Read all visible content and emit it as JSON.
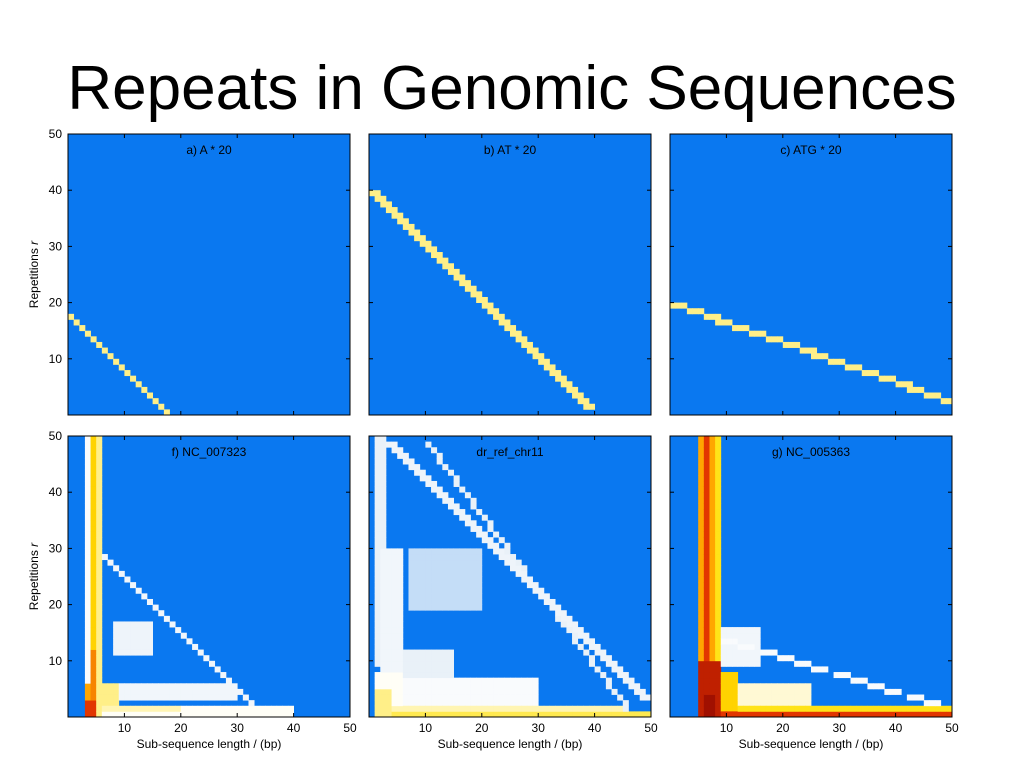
{
  "slide": {
    "title": "Repeats in Genomic Sequences"
  },
  "colors": {
    "background": "#0A78F0",
    "light_streak": "#E6F0FA",
    "colormap": [
      "#0A78F0",
      "#E8F0F8",
      "#FFFFFF",
      "#FFF2A0",
      "#FFE000",
      "#FFA000",
      "#E03000",
      "#A01000"
    ]
  },
  "axes_text": {
    "ylabel": "Repetitions",
    "ylabel_var": "r",
    "xlabel": "Sub-sequence length / (bp)",
    "yticks": [
      "10",
      "20",
      "30",
      "40",
      "50"
    ],
    "xticks": [
      "10",
      "20",
      "30",
      "40",
      "50"
    ]
  },
  "chart_data": [
    {
      "type": "heatmap",
      "title": "a) A * 20",
      "xlabel": "",
      "ylabel": "Repetitions r",
      "xlim": [
        0,
        50
      ],
      "ylim": [
        0,
        50
      ],
      "cells": [
        {
          "from": [
            1,
            18
          ],
          "to": [
            18,
            1
          ],
          "step": 1,
          "intensity": 0.45
        }
      ]
    },
    {
      "type": "heatmap",
      "title": "b) AT * 20",
      "xlabel": "",
      "ylabel": "",
      "xlim": [
        0,
        50
      ],
      "ylim": [
        0,
        50
      ],
      "cells": [
        {
          "from": [
            1,
            40
          ],
          "to": [
            39,
            2
          ],
          "step": 2,
          "intensity": 0.45
        }
      ]
    },
    {
      "type": "heatmap",
      "title": "c) ATG * 20",
      "xlabel": "",
      "ylabel": "",
      "xlim": [
        0,
        50
      ],
      "ylim": [
        0,
        50
      ],
      "cells": [
        {
          "from": [
            1,
            20
          ],
          "to": [
            49,
            3
          ],
          "step": 3,
          "intensity": 0.45
        }
      ]
    },
    {
      "type": "heatmap",
      "title": "f) NC_007323",
      "xlabel": "Sub-sequence length / (bp)",
      "ylabel": "Repetitions r",
      "xlim": [
        0,
        50
      ],
      "ylim": [
        0,
        50
      ],
      "cells": [
        {
          "x": [
            4,
            4
          ],
          "y": [
            1,
            50
          ],
          "intensity": 0.25
        },
        {
          "x": [
            5,
            5
          ],
          "y": [
            1,
            50
          ],
          "intensity": 0.6
        },
        {
          "x": [
            6,
            6
          ],
          "y": [
            1,
            50
          ],
          "intensity": 0.45
        },
        {
          "x": [
            5,
            5
          ],
          "y": [
            1,
            12
          ],
          "intensity": 0.75
        },
        {
          "x": [
            4,
            4
          ],
          "y": [
            1,
            6
          ],
          "intensity": 0.7
        },
        {
          "x": [
            4,
            5
          ],
          "y": [
            1,
            3
          ],
          "intensity": 0.85
        },
        {
          "x": [
            6,
            9
          ],
          "y": [
            3,
            6
          ],
          "intensity": 0.45
        },
        {
          "x": [
            6,
            40
          ],
          "y": [
            1,
            2
          ],
          "intensity": 0.3
        },
        {
          "x": [
            6,
            20
          ],
          "y": [
            2,
            2
          ],
          "intensity": 0.4
        },
        {
          "x": [
            8,
            30
          ],
          "y": [
            4,
            6
          ],
          "intensity": 0.2
        },
        {
          "x": [
            9,
            15
          ],
          "y": [
            12,
            17
          ],
          "intensity": 0.18
        },
        {
          "from": [
            7,
            29
          ],
          "to": [
            35,
            1
          ],
          "step": 1,
          "intensity": 0.2
        }
      ]
    },
    {
      "type": "heatmap",
      "title": "dr_ref_chr11",
      "xlabel": "Sub-sequence length / (bp)",
      "ylabel": "",
      "xlim": [
        0,
        50
      ],
      "ylim": [
        0,
        50
      ],
      "cells": [
        {
          "x": [
            2,
            3
          ],
          "y": [
            10,
            50
          ],
          "intensity": 0.15
        },
        {
          "x": [
            3,
            6
          ],
          "y": [
            1,
            30
          ],
          "intensity": 0.2
        },
        {
          "x": [
            2,
            6
          ],
          "y": [
            1,
            8
          ],
          "intensity": 0.3
        },
        {
          "x": [
            2,
            4
          ],
          "y": [
            1,
            5
          ],
          "intensity": 0.45
        },
        {
          "x": [
            6,
            15
          ],
          "y": [
            5,
            12
          ],
          "intensity": 0.15
        },
        {
          "x": [
            6,
            30
          ],
          "y": [
            3,
            7
          ],
          "intensity": 0.25
        },
        {
          "x": [
            4,
            45
          ],
          "y": [
            1,
            2
          ],
          "intensity": 0.4
        },
        {
          "x": [
            5,
            50
          ],
          "y": [
            1,
            1
          ],
          "intensity": 0.5
        },
        {
          "x": [
            8,
            20
          ],
          "y": [
            20,
            30
          ],
          "intensity": 0.12
        },
        {
          "from": [
            4,
            49
          ],
          "to": [
            49,
            4
          ],
          "step": 2,
          "intensity": 0.18
        },
        {
          "from": [
            11,
            49
          ],
          "to": [
            47,
            1
          ],
          "step": 1,
          "intensity": 0.15
        }
      ]
    },
    {
      "type": "heatmap",
      "title": "g) NC_005363",
      "xlabel": "Sub-sequence length / (bp)",
      "ylabel": "",
      "xlim": [
        0,
        50
      ],
      "ylim": [
        0,
        50
      ],
      "cells": [
        {
          "x": [
            6,
            6
          ],
          "y": [
            1,
            50
          ],
          "intensity": 0.7
        },
        {
          "x": [
            7,
            7
          ],
          "y": [
            1,
            50
          ],
          "intensity": 0.85
        },
        {
          "x": [
            8,
            8
          ],
          "y": [
            1,
            50
          ],
          "intensity": 0.7
        },
        {
          "x": [
            9,
            9
          ],
          "y": [
            1,
            50
          ],
          "intensity": 0.55
        },
        {
          "x": [
            6,
            9
          ],
          "y": [
            1,
            10
          ],
          "intensity": 0.93
        },
        {
          "x": [
            7,
            8
          ],
          "y": [
            1,
            4
          ],
          "intensity": 1.0
        },
        {
          "x": [
            9,
            12
          ],
          "y": [
            2,
            8
          ],
          "intensity": 0.6
        },
        {
          "x": [
            9,
            25
          ],
          "y": [
            3,
            6
          ],
          "intensity": 0.35
        },
        {
          "x": [
            9,
            50
          ],
          "y": [
            1,
            2
          ],
          "intensity": 0.55
        },
        {
          "x": [
            10,
            50
          ],
          "y": [
            1,
            1
          ],
          "intensity": 0.85
        },
        {
          "x": [
            10,
            16
          ],
          "y": [
            10,
            16
          ],
          "intensity": 0.2
        },
        {
          "from": [
            10,
            14
          ],
          "to": [
            49,
            2
          ],
          "step": 3,
          "intensity": 0.25
        }
      ]
    }
  ]
}
